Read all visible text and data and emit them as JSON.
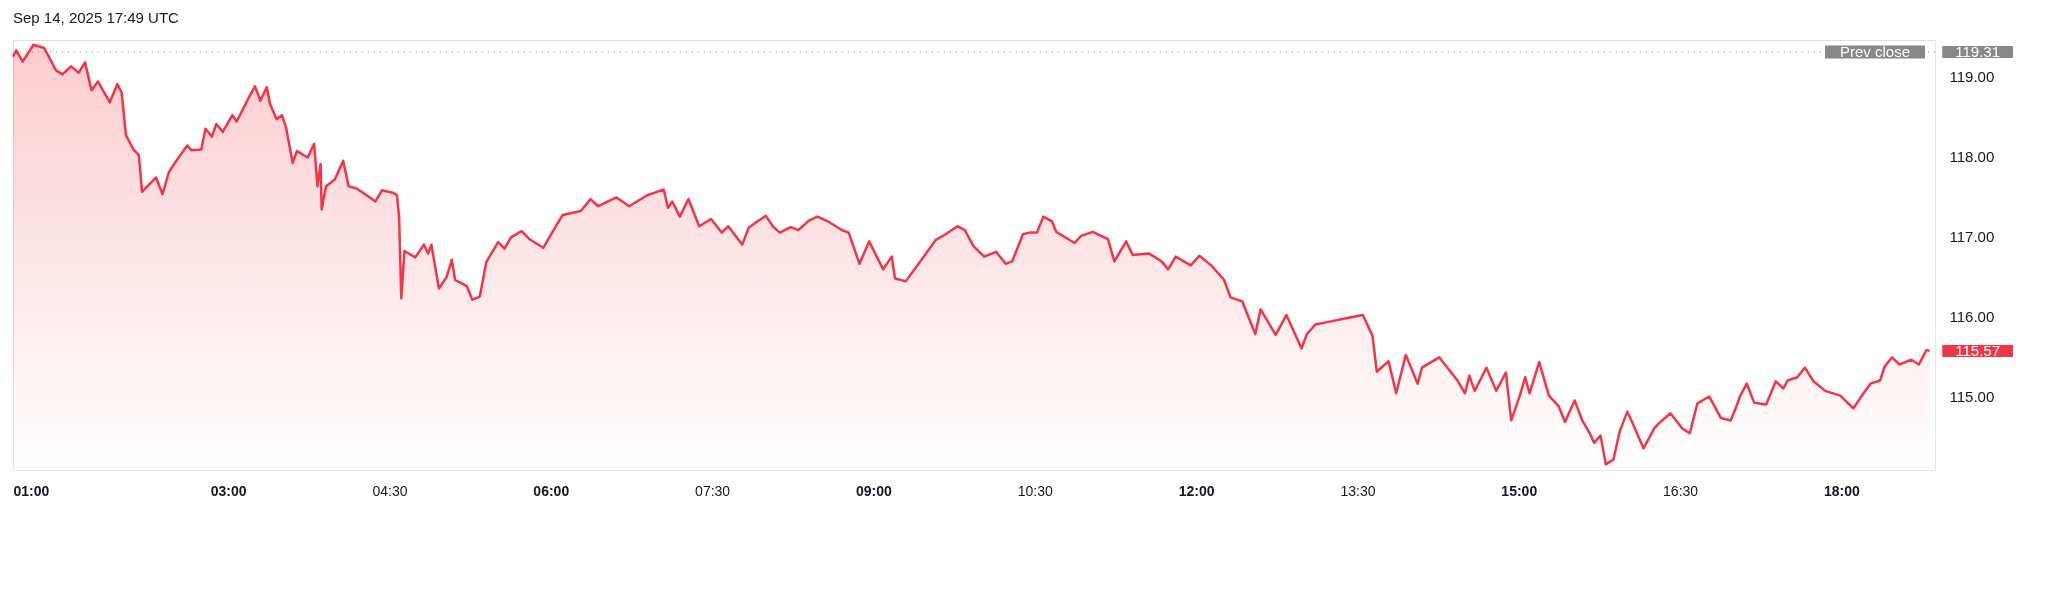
{
  "chart_data": {
    "type": "area",
    "x": [
      1.0,
      1.03,
      1.09,
      1.19,
      1.29,
      1.4,
      1.46,
      1.54,
      1.61,
      1.67,
      1.73,
      1.79,
      1.9,
      1.97,
      2.01,
      2.05,
      2.12,
      2.17,
      2.2,
      2.33,
      2.39,
      2.45,
      2.54,
      2.62,
      2.66,
      2.75,
      2.79,
      2.85,
      2.89,
      2.95,
      3.04,
      3.08,
      3.2,
      3.25,
      3.3,
      3.36,
      3.39,
      3.45,
      3.5,
      3.54,
      3.6,
      3.64,
      3.74,
      3.8,
      3.83,
      3.86,
      3.87,
      3.91,
      3.99,
      4.07,
      4.12,
      4.2,
      4.37,
      4.43,
      4.53,
      4.57,
      4.59,
      4.61,
      4.64,
      4.74,
      4.82,
      4.86,
      4.89,
      4.96,
      5.03,
      5.08,
      5.11,
      5.22,
      5.27,
      5.34,
      5.4,
      5.51,
      5.57,
      5.63,
      5.73,
      5.8,
      5.93,
      6.06,
      6.11,
      6.28,
      6.37,
      6.44,
      6.61,
      6.73,
      6.9,
      7.05,
      7.09,
      7.13,
      7.2,
      7.28,
      7.38,
      7.49,
      7.59,
      7.65,
      7.78,
      7.84,
      7.92,
      8.0,
      8.07,
      8.13,
      8.23,
      8.3,
      8.4,
      8.48,
      8.59,
      8.71,
      8.77,
      8.87,
      8.96,
      9.09,
      9.17,
      9.2,
      9.3,
      9.42,
      9.58,
      9.66,
      9.78,
      9.85,
      9.93,
      10.03,
      10.14,
      10.23,
      10.29,
      10.39,
      10.45,
      10.52,
      10.58,
      10.66,
      10.7,
      10.87,
      10.93,
      11.04,
      11.18,
      11.24,
      11.35,
      11.41,
      11.56,
      11.68,
      11.74,
      11.81,
      11.95,
      12.03,
      12.14,
      12.26,
      12.32,
      12.43,
      12.47,
      12.55,
      12.6,
      12.74,
      12.84,
      12.98,
      13.03,
      13.11,
      13.22,
      13.36,
      13.55,
      13.64,
      13.68,
      13.79,
      13.86,
      13.95,
      14.06,
      14.1,
      14.26,
      14.43,
      14.5,
      14.54,
      14.59,
      14.7,
      14.79,
      14.88,
      14.93,
      15.01,
      15.06,
      15.1,
      15.19,
      15.28,
      15.37,
      15.43,
      15.52,
      15.59,
      15.66,
      15.7,
      15.76,
      15.81,
      15.88,
      15.94,
      16.01,
      16.08,
      16.16,
      16.26,
      16.3,
      16.41,
      16.52,
      16.59,
      16.66,
      16.77,
      16.88,
      16.97,
      17.01,
      17.06,
      17.12,
      17.19,
      17.3,
      17.39,
      17.46,
      17.5,
      17.59,
      17.66,
      17.74,
      17.85,
      17.99,
      18.11,
      18.19,
      18.27,
      18.36,
      18.4,
      18.47,
      18.54,
      18.65,
      18.72,
      18.79,
      18.82
    ],
    "series": [
      {
        "color": "#f23645",
        "values": [
          119.25,
          119.33,
          119.19,
          119.4,
          119.36,
          119.08,
          119.03,
          119.13,
          119.05,
          119.18,
          118.83,
          118.94,
          118.68,
          118.91,
          118.8,
          118.27,
          118.09,
          118.02,
          117.56,
          117.74,
          117.53,
          117.81,
          117.99,
          118.14,
          118.08,
          118.09,
          118.35,
          118.25,
          118.41,
          118.31,
          118.52,
          118.44,
          118.76,
          118.88,
          118.7,
          118.87,
          118.66,
          118.47,
          118.52,
          118.36,
          117.92,
          118.07,
          117.99,
          118.16,
          117.63,
          117.91,
          117.34,
          117.63,
          117.71,
          117.95,
          117.63,
          117.6,
          117.44,
          117.58,
          117.55,
          117.52,
          117.24,
          116.23,
          116.82,
          116.74,
          116.9,
          116.79,
          116.9,
          116.35,
          116.49,
          116.71,
          116.46,
          116.38,
          116.21,
          116.25,
          116.68,
          116.93,
          116.85,
          116.99,
          117.07,
          116.97,
          116.86,
          117.16,
          117.27,
          117.32,
          117.47,
          117.38,
          117.49,
          117.38,
          117.52,
          117.59,
          117.36,
          117.44,
          117.25,
          117.47,
          117.13,
          117.22,
          117.05,
          117.13,
          116.9,
          117.11,
          117.19,
          117.26,
          117.12,
          117.05,
          117.12,
          117.08,
          117.2,
          117.25,
          117.18,
          117.08,
          117.05,
          116.66,
          116.94,
          116.59,
          116.75,
          116.48,
          116.44,
          116.66,
          116.96,
          117.02,
          117.13,
          117.08,
          116.88,
          116.75,
          116.81,
          116.66,
          116.69,
          117.03,
          117.05,
          117.05,
          117.25,
          117.19,
          117.06,
          116.92,
          117.01,
          117.06,
          116.97,
          116.69,
          116.94,
          116.77,
          116.79,
          116.69,
          116.59,
          116.75,
          116.64,
          116.76,
          116.64,
          116.46,
          116.24,
          116.19,
          116.05,
          115.78,
          116.09,
          115.77,
          116.02,
          115.6,
          115.78,
          115.9,
          115.93,
          115.97,
          116.02,
          115.76,
          115.31,
          115.44,
          115.04,
          115.52,
          115.16,
          115.36,
          115.49,
          115.2,
          115.04,
          115.26,
          115.07,
          115.36,
          115.07,
          115.3,
          114.7,
          115.01,
          115.24,
          115.04,
          115.43,
          115.01,
          114.88,
          114.68,
          114.95,
          114.7,
          114.54,
          114.42,
          114.51,
          114.15,
          114.21,
          114.57,
          114.81,
          114.6,
          114.35,
          114.6,
          114.66,
          114.79,
          114.6,
          114.54,
          114.91,
          115.0,
          114.73,
          114.7,
          114.83,
          115.01,
          115.16,
          114.92,
          114.9,
          115.19,
          115.1,
          115.2,
          115.24,
          115.36,
          115.19,
          115.07,
          115.01,
          114.85,
          115.01,
          115.16,
          115.2,
          115.37,
          115.49,
          115.4,
          115.46,
          115.4,
          115.58,
          115.57
        ]
      }
    ],
    "xlim": [
      1,
      18.87
    ],
    "xticks": [
      {
        "value": 1,
        "label": "01:00"
      },
      {
        "value": 3,
        "label": "03:00"
      },
      {
        "value": 4.5,
        "label": "04:30"
      },
      {
        "value": 6,
        "label": "06:00"
      },
      {
        "value": 7.5,
        "label": "07:30"
      },
      {
        "value": 9,
        "label": "09:00"
      },
      {
        "value": 10.5,
        "label": "10:30"
      },
      {
        "value": 12,
        "label": "12:00"
      },
      {
        "value": 13.5,
        "label": "13:30"
      },
      {
        "value": 15,
        "label": "15:00"
      },
      {
        "value": 16.5,
        "label": "16:30"
      },
      {
        "value": 18,
        "label": "18:00"
      }
    ],
    "ylim": [
      114.08,
      119.46
    ],
    "yticks": [
      {
        "value": 115,
        "label": "115.00"
      },
      {
        "value": 116,
        "label": "116.00"
      },
      {
        "value": 117,
        "label": "117.00"
      },
      {
        "value": 118,
        "label": "118.00"
      },
      {
        "value": 119,
        "label": "119.00"
      }
    ],
    "ref_lines": [
      {
        "axis": "y",
        "value": 119.31,
        "label": "Prev close",
        "color": "#888888",
        "line_style": "dotted"
      }
    ],
    "annotations": [
      "Sep 14, 2025 17:49 UTC",
      {
        "text": "119.31",
        "x": 18.82,
        "y": 119.31
      },
      {
        "text": "115.57",
        "x": 18.82,
        "y": 115.57
      }
    ],
    "grid": false,
    "legend": false
  }
}
